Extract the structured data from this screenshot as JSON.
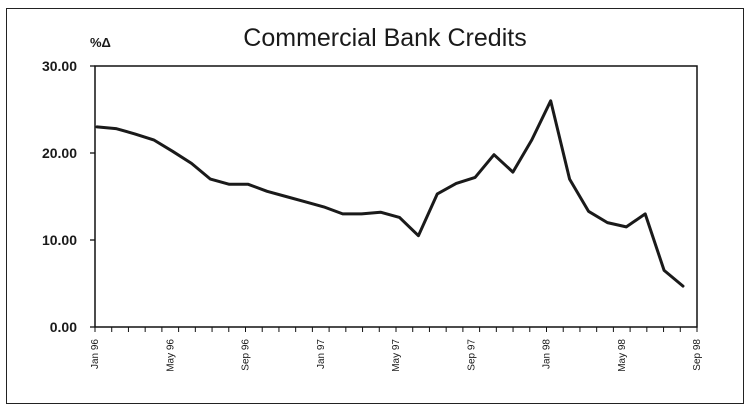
{
  "chart_data": {
    "type": "line",
    "title": "Commercial Bank Credits",
    "ylabel": "%Δ",
    "xlabel": "",
    "ylim": [
      0,
      30
    ],
    "yticks": [
      "0.00",
      "10.00",
      "20.00",
      "30.00"
    ],
    "ytick_values": [
      0,
      10,
      20,
      30
    ],
    "xticks": [
      "Jan 96",
      "May 96",
      "Sep 96",
      "Jan 97",
      "May 97",
      "Sep 97",
      "Jan 98",
      "May 98",
      "Sep 98"
    ],
    "xtick_index": [
      0,
      4,
      8,
      12,
      16,
      20,
      24,
      28,
      32
    ],
    "grid": false,
    "legend": "none",
    "series": [
      {
        "color": "#1a1a1a",
        "values": [
          23.0,
          22.8,
          22.2,
          21.5,
          20.2,
          18.8,
          17.0,
          16.4,
          16.4,
          15.6,
          15.0,
          14.4,
          13.8,
          13.0,
          13.0,
          13.2,
          12.6,
          10.5,
          15.3,
          16.5,
          17.2,
          19.8,
          17.8,
          21.5,
          26.0,
          17.0,
          13.3,
          12.0,
          11.5,
          13.0,
          6.5,
          4.7
        ]
      }
    ]
  }
}
